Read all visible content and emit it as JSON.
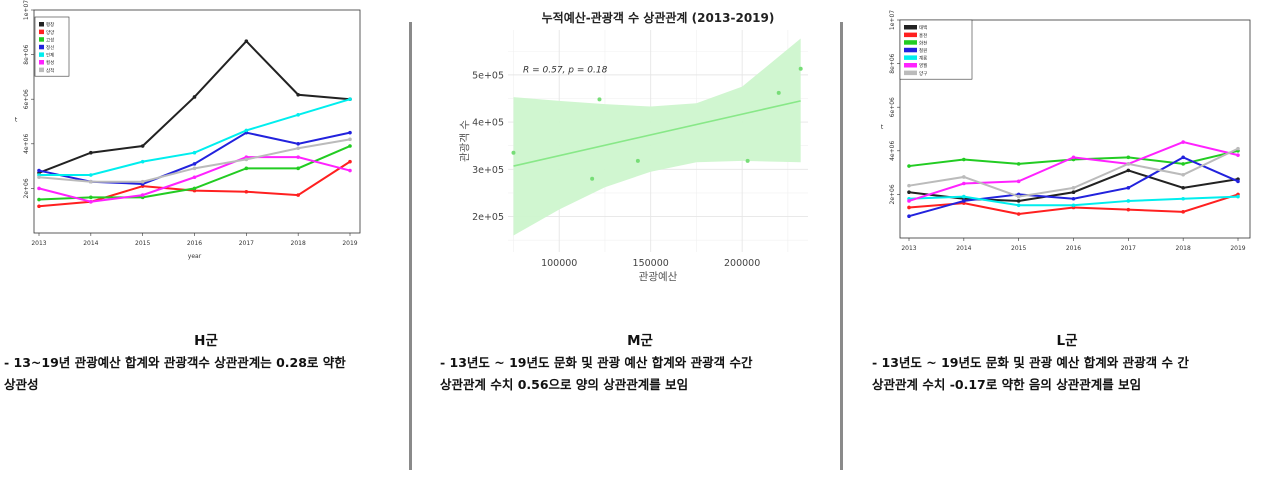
{
  "chart_data": [
    {
      "type": "line",
      "x": [
        "2013",
        "2014",
        "2015",
        "2016",
        "2017",
        "2018",
        "2019"
      ],
      "xlabel": "year",
      "ylabel": "t",
      "ylim": [
        0,
        10000000
      ],
      "yticks": [
        "2e+06",
        "4e+06",
        "6e+06",
        "8e+06",
        "1e+07"
      ],
      "legend_position": "top-left",
      "series": [
        {
          "name": "평창",
          "color": "#222222",
          "values": [
            2700000,
            3600000,
            3900000,
            6100000,
            8600000,
            6200000,
            6000000
          ]
        },
        {
          "name": "양양",
          "color": "#ff2020",
          "values": [
            1200000,
            1400000,
            2100000,
            1900000,
            1850000,
            1700000,
            3200000
          ]
        },
        {
          "name": "고성",
          "color": "#22cc22",
          "values": [
            1500000,
            1600000,
            1600000,
            2000000,
            2900000,
            2900000,
            3900000
          ]
        },
        {
          "name": "정선",
          "color": "#2222dd",
          "values": [
            2800000,
            2300000,
            2200000,
            3100000,
            4500000,
            4000000,
            4500000
          ]
        },
        {
          "name": "인제",
          "color": "#00eeee",
          "values": [
            2600000,
            2600000,
            3200000,
            3600000,
            4600000,
            5300000,
            6000000
          ]
        },
        {
          "name": "횡성",
          "color": "#ff22ff",
          "values": [
            2000000,
            1400000,
            1700000,
            2500000,
            3400000,
            3400000,
            2800000
          ]
        },
        {
          "name": "삼척",
          "color": "#bbbbbb",
          "values": [
            2500000,
            2300000,
            2300000,
            2900000,
            3300000,
            3800000,
            4200000
          ]
        }
      ]
    },
    {
      "type": "scatter",
      "title": "누적예산-관광객 수 상관관계 (2013-2019)",
      "xlabel": "관광예산",
      "ylabel": "관광객 수",
      "annotation": "R = 0.57, p = 0.18",
      "xlim": [
        72000,
        236000
      ],
      "ylim": [
        125000,
        595000
      ],
      "xticks": [
        100000,
        150000,
        200000
      ],
      "xtick_labels": [
        "100000",
        "150000",
        "200000"
      ],
      "yticks": [
        200000,
        300000,
        400000,
        500000
      ],
      "ytick_labels": [
        "2e+05",
        "3e+05",
        "4e+05",
        "5e+05"
      ],
      "x": [
        75000,
        118000,
        122000,
        143000,
        203000,
        220000,
        232000
      ],
      "y": [
        335000,
        280000,
        448000,
        318000,
        318000,
        462000,
        513000
      ],
      "trend": {
        "x": [
          75000,
          232000
        ],
        "y": [
          307000,
          445000
        ]
      },
      "band_upper": {
        "x": [
          75000,
          100000,
          125000,
          150000,
          175000,
          200000,
          232000
        ],
        "y": [
          453000,
          445000,
          438000,
          433000,
          440000,
          475000,
          577000
        ]
      },
      "band_lower": {
        "x": [
          75000,
          100000,
          125000,
          150000,
          175000,
          200000,
          232000
        ],
        "y": [
          160000,
          215000,
          262000,
          295000,
          315000,
          318000,
          315000
        ]
      },
      "color": "#66dd66"
    },
    {
      "type": "line",
      "x": [
        "2013",
        "2014",
        "2015",
        "2016",
        "2017",
        "2018",
        "2019"
      ],
      "ylabel": "t",
      "ylim": [
        0,
        10000000
      ],
      "yticks": [
        "2e+06",
        "4e+06",
        "6e+06",
        "8e+06",
        "1e+07"
      ],
      "legend_position": "top-left",
      "series": [
        {
          "name": "태백",
          "color": "#222222",
          "values": [
            2100000,
            1800000,
            1700000,
            2100000,
            3100000,
            2300000,
            2700000
          ]
        },
        {
          "name": "홍천",
          "color": "#ff2020",
          "values": [
            1400000,
            1600000,
            1100000,
            1400000,
            1300000,
            1200000,
            2000000
          ]
        },
        {
          "name": "화천",
          "color": "#22cc22",
          "values": [
            3300000,
            3600000,
            3400000,
            3600000,
            3700000,
            3400000,
            4000000
          ]
        },
        {
          "name": "철원",
          "color": "#2222dd",
          "values": [
            1000000,
            1700000,
            2000000,
            1800000,
            2300000,
            3700000,
            2600000
          ]
        },
        {
          "name": "계룡",
          "color": "#00eeee",
          "values": [
            1800000,
            1900000,
            1500000,
            1500000,
            1700000,
            1800000,
            1900000
          ]
        },
        {
          "name": "영월",
          "color": "#ff22ff",
          "values": [
            1700000,
            2500000,
            2600000,
            3700000,
            3400000,
            4400000,
            3800000
          ]
        },
        {
          "name": "양구",
          "color": "#bbbbbb",
          "values": [
            2400000,
            2800000,
            1900000,
            2300000,
            3400000,
            2900000,
            4100000
          ]
        }
      ]
    }
  ],
  "captions": {
    "h": {
      "head": "H군",
      "line1": "- 13~19년 관광예산 합계와 관광객수 상관관계는 0.28로 약한",
      "line2": "상관성"
    },
    "m": {
      "head": "M군",
      "line1": "- 13년도 ~ 19년도 문화 및 관광 예산 합계와 관광객 수간",
      "line2": "상관관계 수치 0.56으로 양의 상관관계를 보임"
    },
    "l": {
      "head": "L군",
      "line1": "- 13년도 ~ 19년도 문화 및 관광 예산 합계와 관광객 수 간",
      "line2": "상관관계 수치 -0.17로 약한 음의 상관관계를 보임"
    }
  }
}
